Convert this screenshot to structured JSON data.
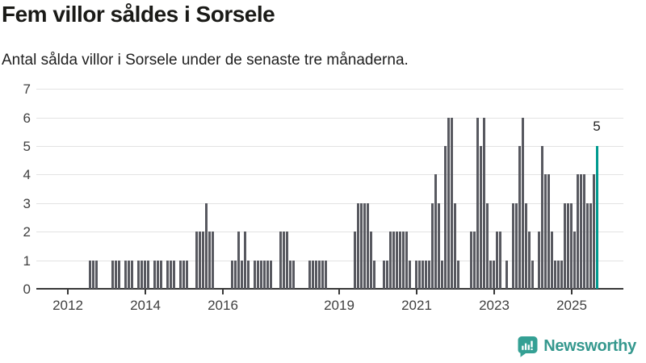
{
  "header": {
    "title": "Fem villor såldes i Sorsele",
    "subtitle": "Antal sålda villor i Sorsele under de senaste tre månaderna."
  },
  "chart_data": {
    "type": "bar",
    "title": "Fem villor såldes i Sorsele",
    "subtitle": "Antal sålda villor i Sorsele under de senaste tre månaderna.",
    "x_unit": "month",
    "start_month": "2011-04",
    "end_month": "2025-09",
    "values": [
      0,
      0,
      0,
      0,
      0,
      0,
      0,
      0,
      0,
      0,
      0,
      0,
      0,
      0,
      0,
      0,
      1,
      1,
      1,
      0,
      0,
      0,
      0,
      1,
      1,
      1,
      0,
      1,
      1,
      1,
      0,
      1,
      1,
      1,
      1,
      0,
      1,
      1,
      1,
      0,
      1,
      1,
      1,
      0,
      1,
      1,
      1,
      0,
      0,
      2,
      2,
      2,
      3,
      2,
      2,
      0,
      0,
      0,
      0,
      0,
      1,
      1,
      2,
      1,
      2,
      1,
      0,
      1,
      1,
      1,
      1,
      1,
      1,
      0,
      0,
      2,
      2,
      2,
      1,
      1,
      0,
      0,
      0,
      0,
      1,
      1,
      1,
      1,
      1,
      1,
      0,
      0,
      0,
      0,
      0,
      0,
      0,
      0,
      2,
      3,
      3,
      3,
      3,
      2,
      1,
      0,
      0,
      1,
      1,
      2,
      2,
      2,
      2,
      2,
      2,
      1,
      0,
      1,
      1,
      1,
      1,
      1,
      3,
      4,
      3,
      1,
      5,
      6,
      6,
      3,
      1,
      0,
      0,
      0,
      2,
      2,
      6,
      5,
      6,
      3,
      1,
      1,
      2,
      2,
      0,
      1,
      0,
      3,
      3,
      5,
      6,
      3,
      2,
      1,
      0,
      2,
      5,
      4,
      4,
      2,
      1,
      1,
      1,
      3,
      3,
      3,
      2,
      4,
      4,
      4,
      3,
      3,
      4,
      5
    ],
    "ylim": [
      0,
      7
    ],
    "yticks": [
      0,
      1,
      2,
      3,
      4,
      5,
      6,
      7
    ],
    "xticks": [
      {
        "label": "2012",
        "month_index": 9
      },
      {
        "label": "2014",
        "month_index": 33
      },
      {
        "label": "2016",
        "month_index": 57
      },
      {
        "label": "2019",
        "month_index": 93
      },
      {
        "label": "2021",
        "month_index": 117
      },
      {
        "label": "2023",
        "month_index": 141
      },
      {
        "label": "2025",
        "month_index": 165
      }
    ],
    "grid": true,
    "legend": "none",
    "highlight_last_bar": true,
    "last_value_label": "5",
    "colors": {
      "bar": "#585960",
      "highlight": "#009a8f",
      "grid": "#e3e3e3",
      "axis": "#383838",
      "tick_label": "#3f3f3f"
    }
  },
  "footer": {
    "brand": "Newsworthy",
    "brand_color": "#35988e",
    "icon": "newsworthy-bar-chart-speech-bubble",
    "icon_color": "#34a094"
  }
}
